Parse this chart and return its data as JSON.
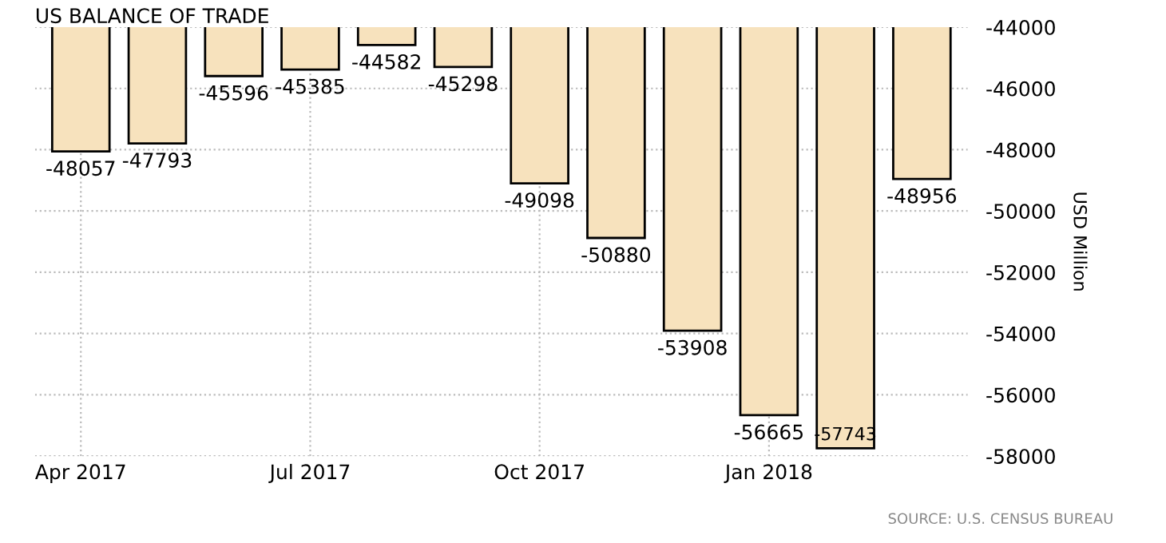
{
  "chart_data": {
    "type": "bar",
    "title": "US BALANCE OF TRADE",
    "ylabel": "USD Million",
    "categories": [
      "Apr 2017",
      null,
      null,
      "Jul 2017",
      null,
      null,
      "Oct 2017",
      null,
      null,
      "Jan 2018",
      null,
      null
    ],
    "values": [
      -48057,
      -47793,
      -45596,
      -45385,
      -44582,
      -45298,
      -49098,
      -50880,
      -53908,
      -56665,
      -57743,
      -48956
    ],
    "color": "#f7e2bd",
    "data_labels": true,
    "ylim": [
      -58000,
      -44000
    ],
    "yticks": [
      -58000,
      -56000,
      -54000,
      -52000,
      -50000,
      -48000,
      -46000,
      -44000
    ],
    "grid": true,
    "annotations": [
      "SOURCE: U.S. CENSUS BUREAU"
    ]
  }
}
